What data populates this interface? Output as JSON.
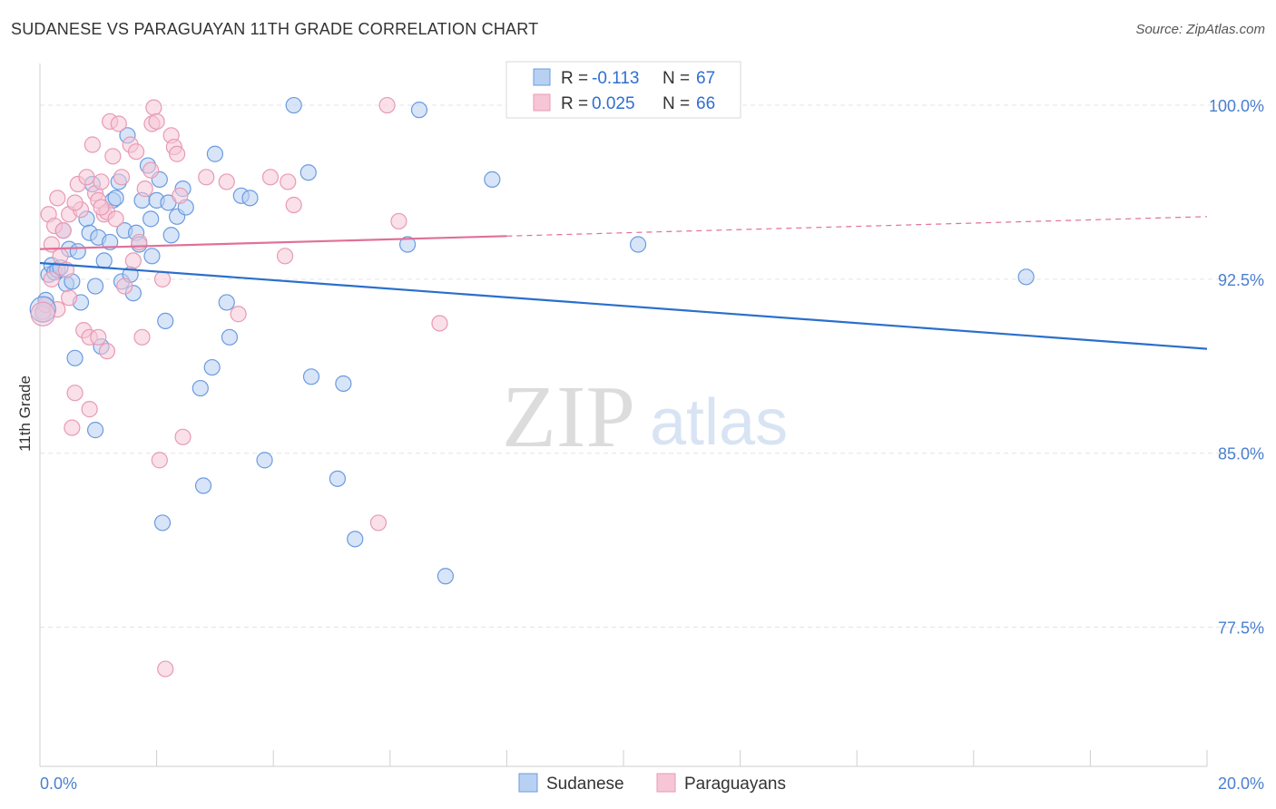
{
  "title": "SUDANESE VS PARAGUAYAN 11TH GRADE CORRELATION CHART",
  "source": "Source: ZipAtlas.com",
  "watermark": {
    "part1": "ZIP",
    "part2": "atlas"
  },
  "chart_data": {
    "type": "scatter",
    "title": "SUDANESE VS PARAGUAYAN 11TH GRADE CORRELATION CHART",
    "xlabel": "",
    "ylabel": "11th Grade",
    "xlim": [
      0,
      20
    ],
    "ylim": [
      71.5,
      101.8
    ],
    "x_tick_labels": [
      "0.0%",
      "20.0%"
    ],
    "y_ticks": [
      77.5,
      85.0,
      92.5,
      100.0
    ],
    "y_tick_labels": [
      "77.5%",
      "85.0%",
      "92.5%",
      "100.0%"
    ],
    "grid": true,
    "legend_position": "top-center",
    "legend": [
      {
        "series": "Sudanese",
        "r_label": "R =",
        "r": "-0.113",
        "n_label": "N =",
        "n": "67"
      },
      {
        "series": "Paraguayans",
        "r_label": "R =",
        "r": "0.025",
        "n_label": "N =",
        "n": "66"
      }
    ],
    "series": [
      {
        "name": "Sudanese",
        "color": "#6a9be0",
        "fill": "#b8d0f2",
        "trend": {
          "x0": 0,
          "y0": 93.2,
          "x1": 20,
          "y1": 89.5,
          "dashed_from": null
        },
        "points": [
          [
            0.05,
            91.1
          ],
          [
            0.1,
            91.6
          ],
          [
            0.15,
            92.7
          ],
          [
            0.2,
            93.1
          ],
          [
            0.25,
            92.8
          ],
          [
            0.3,
            92.9
          ],
          [
            0.35,
            93.0
          ],
          [
            0.4,
            94.6
          ],
          [
            0.45,
            92.3
          ],
          [
            0.5,
            93.8
          ],
          [
            0.55,
            92.4
          ],
          [
            0.6,
            89.1
          ],
          [
            0.65,
            93.7
          ],
          [
            0.7,
            91.5
          ],
          [
            0.8,
            95.1
          ],
          [
            0.85,
            94.5
          ],
          [
            0.9,
            96.6
          ],
          [
            0.95,
            92.2
          ],
          [
            0.95,
            86.0
          ],
          [
            1.0,
            94.3
          ],
          [
            1.05,
            89.6
          ],
          [
            1.1,
            93.3
          ],
          [
            1.2,
            94.1
          ],
          [
            1.25,
            95.9
          ],
          [
            1.3,
            96.0
          ],
          [
            1.35,
            96.7
          ],
          [
            1.4,
            92.4
          ],
          [
            1.45,
            94.6
          ],
          [
            1.5,
            98.7
          ],
          [
            1.55,
            92.7
          ],
          [
            1.6,
            91.9
          ],
          [
            1.65,
            94.5
          ],
          [
            1.7,
            94.0
          ],
          [
            1.75,
            95.9
          ],
          [
            1.85,
            97.4
          ],
          [
            1.9,
            95.1
          ],
          [
            1.92,
            93.5
          ],
          [
            2.0,
            95.9
          ],
          [
            2.05,
            96.8
          ],
          [
            2.1,
            82.0
          ],
          [
            2.15,
            90.7
          ],
          [
            2.2,
            95.8
          ],
          [
            2.25,
            94.4
          ],
          [
            2.35,
            95.2
          ],
          [
            2.45,
            96.4
          ],
          [
            2.5,
            95.6
          ],
          [
            2.75,
            87.8
          ],
          [
            2.8,
            83.6
          ],
          [
            2.95,
            88.7
          ],
          [
            3.0,
            97.9
          ],
          [
            3.2,
            91.5
          ],
          [
            3.25,
            90.0
          ],
          [
            3.45,
            96.1
          ],
          [
            3.6,
            96.0
          ],
          [
            3.85,
            84.7
          ],
          [
            4.35,
            100.0
          ],
          [
            4.6,
            97.1
          ],
          [
            4.65,
            88.3
          ],
          [
            5.1,
            83.9
          ],
          [
            5.4,
            81.3
          ],
          [
            5.2,
            88.0
          ],
          [
            6.3,
            94.0
          ],
          [
            6.5,
            99.8
          ],
          [
            6.95,
            79.7
          ],
          [
            7.75,
            96.8
          ],
          [
            10.25,
            94.0
          ],
          [
            16.9,
            92.6
          ]
        ]
      },
      {
        "name": "Paraguayans",
        "color": "#e89ab4",
        "fill": "#f6c6d6",
        "trend": {
          "x0": 0,
          "y0": 93.8,
          "x1": 20,
          "y1": 95.2,
          "dashed_from": 8.0
        },
        "points": [
          [
            0.05,
            91.0
          ],
          [
            0.1,
            91.4
          ],
          [
            0.15,
            95.3
          ],
          [
            0.2,
            94.0
          ],
          [
            0.25,
            94.8
          ],
          [
            0.3,
            91.2
          ],
          [
            0.35,
            93.5
          ],
          [
            0.4,
            94.6
          ],
          [
            0.45,
            92.9
          ],
          [
            0.5,
            95.3
          ],
          [
            0.5,
            91.7
          ],
          [
            0.55,
            86.1
          ],
          [
            0.6,
            87.6
          ],
          [
            0.65,
            96.6
          ],
          [
            0.7,
            95.5
          ],
          [
            0.75,
            90.3
          ],
          [
            0.8,
            96.9
          ],
          [
            0.85,
            90.0
          ],
          [
            0.85,
            86.9
          ],
          [
            0.9,
            98.3
          ],
          [
            0.95,
            96.2
          ],
          [
            1.0,
            95.9
          ],
          [
            1.0,
            90.0
          ],
          [
            1.05,
            96.7
          ],
          [
            1.1,
            95.3
          ],
          [
            1.15,
            95.4
          ],
          [
            1.15,
            89.4
          ],
          [
            1.2,
            99.3
          ],
          [
            1.25,
            97.8
          ],
          [
            1.3,
            95.1
          ],
          [
            1.35,
            99.2
          ],
          [
            1.4,
            96.9
          ],
          [
            1.45,
            92.2
          ],
          [
            1.55,
            98.3
          ],
          [
            1.6,
            93.3
          ],
          [
            1.65,
            98.0
          ],
          [
            1.7,
            94.1
          ],
          [
            1.75,
            90.0
          ],
          [
            1.8,
            96.4
          ],
          [
            1.9,
            97.2
          ],
          [
            1.92,
            99.2
          ],
          [
            1.95,
            99.9
          ],
          [
            2.0,
            99.3
          ],
          [
            2.05,
            84.7
          ],
          [
            2.1,
            92.5
          ],
          [
            2.15,
            75.7
          ],
          [
            2.25,
            98.7
          ],
          [
            2.3,
            98.2
          ],
          [
            2.35,
            97.9
          ],
          [
            2.4,
            96.1
          ],
          [
            2.45,
            85.7
          ],
          [
            2.85,
            96.9
          ],
          [
            3.2,
            96.7
          ],
          [
            3.4,
            91.0
          ],
          [
            3.95,
            96.9
          ],
          [
            4.2,
            93.5
          ],
          [
            4.25,
            96.7
          ],
          [
            4.35,
            95.7
          ],
          [
            5.8,
            82.0
          ],
          [
            5.95,
            100.0
          ],
          [
            6.15,
            95.0
          ],
          [
            6.85,
            90.6
          ],
          [
            0.3,
            96.0
          ],
          [
            0.6,
            95.8
          ],
          [
            1.05,
            95.6
          ],
          [
            0.2,
            92.5
          ]
        ]
      }
    ]
  },
  "legend_bottom": [
    {
      "label": "Sudanese",
      "color": "#b8d0f2",
      "border": "#6a9be0"
    },
    {
      "label": "Paraguayans",
      "color": "#f6c6d6",
      "border": "#e89ab4"
    }
  ]
}
